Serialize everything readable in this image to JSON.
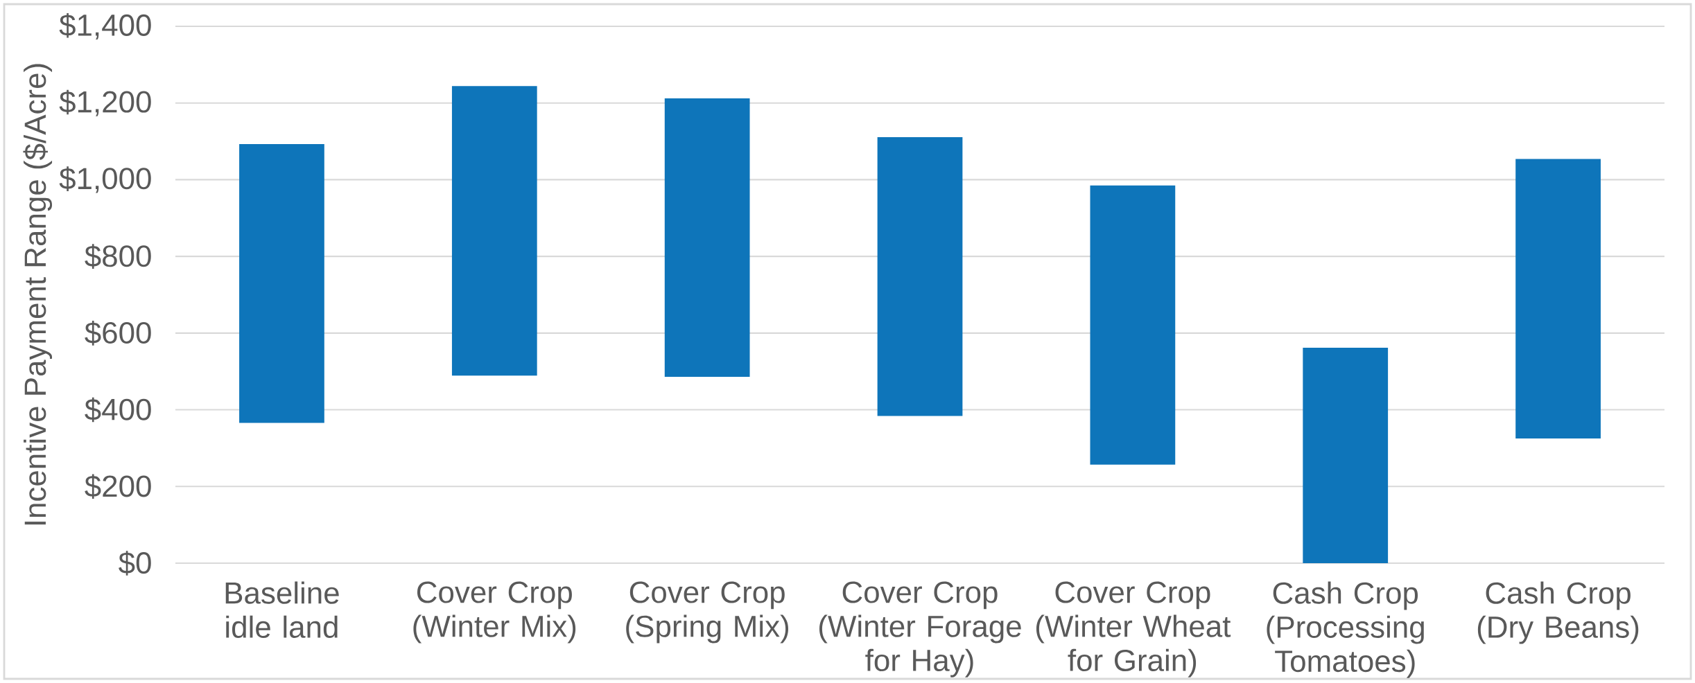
{
  "chart_data": {
    "type": "bar",
    "ylabel": "Incentive Payment Range  ($/Acre)",
    "categories": [
      "Baseline idle land",
      "Cover Crop (Winter Mix)",
      "Cover Crop (Spring Mix)",
      "Cover Crop (Winter Forage for Hay)",
      "Cover Crop (Winter Wheat for Grain)",
      "Cash Crop (Processing Tomatoes)",
      "Cash Crop (Dry Beans)"
    ],
    "base": [
      366,
      489,
      486,
      384,
      257,
      0,
      325
    ],
    "values": [
      727,
      755,
      726,
      727,
      728,
      562,
      729
    ],
    "color": "#0e75ba",
    "ylim": [
      0,
      1400
    ],
    "yticks": [
      {
        "value": 0,
        "label": "$0"
      },
      {
        "value": 200,
        "label": "$200"
      },
      {
        "value": 400,
        "label": "$400"
      },
      {
        "value": 600,
        "label": "$600"
      },
      {
        "value": 800,
        "label": "$800"
      },
      {
        "value": 1000,
        "label": "$1,000"
      },
      {
        "value": 1200,
        "label": "$1,200"
      },
      {
        "value": 1400,
        "label": "$1,400"
      }
    ],
    "grid": "y"
  }
}
